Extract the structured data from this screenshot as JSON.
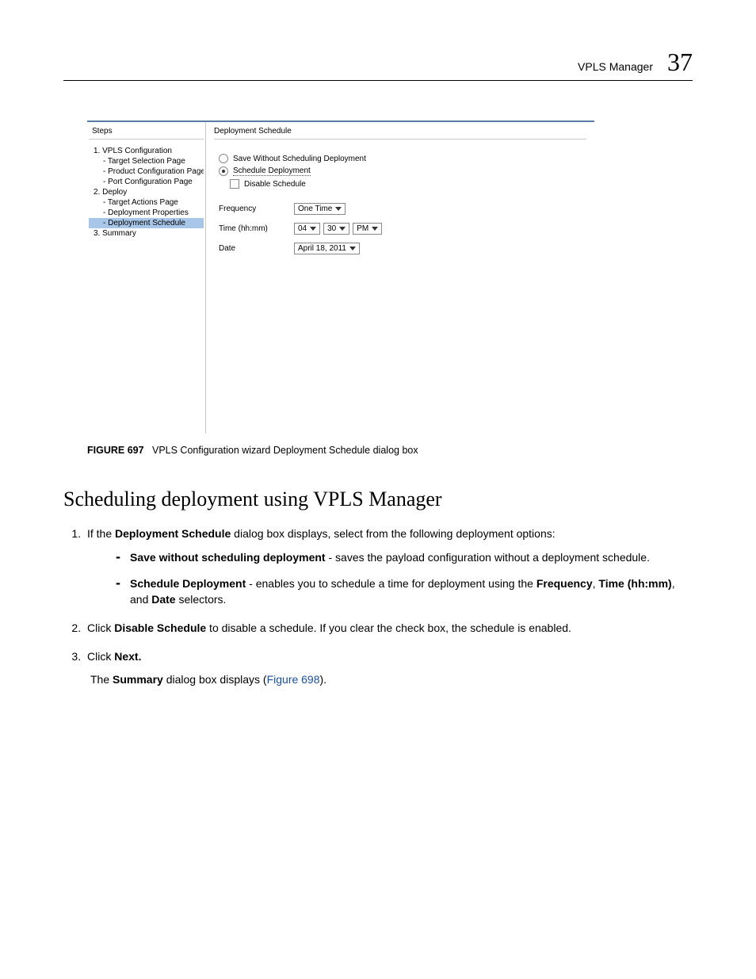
{
  "header": {
    "title": "VPLS Manager",
    "chapter_number": "37"
  },
  "figure": {
    "steps_title": "Steps",
    "steps": [
      {
        "label": "1. VPLS Configuration",
        "sub": false,
        "active": false
      },
      {
        "label": "- Target Selection Page",
        "sub": true,
        "active": false
      },
      {
        "label": "- Product Configuration Page",
        "sub": true,
        "active": false
      },
      {
        "label": "- Port Configuration Page",
        "sub": true,
        "active": false
      },
      {
        "label": "2. Deploy",
        "sub": false,
        "active": false
      },
      {
        "label": "- Target Actions Page",
        "sub": true,
        "active": false
      },
      {
        "label": "- Deployment Properties",
        "sub": true,
        "active": false
      },
      {
        "label": "- Deployment Schedule",
        "sub": true,
        "active": true
      },
      {
        "label": "3. Summary",
        "sub": false,
        "active": false
      }
    ],
    "panel_title": "Deployment Schedule",
    "radio_save": "Save Without Scheduling Deployment",
    "radio_schedule": "Schedule Deployment",
    "check_disable": "Disable Schedule",
    "row_freq_label": "Frequency",
    "row_freq_value": "One Time",
    "row_time_label": "Time (hh:mm)",
    "row_time_hh": "04",
    "row_time_mm": "30",
    "row_time_ampm": "PM",
    "row_date_label": "Date",
    "row_date_value": "April 18, 2011"
  },
  "caption": {
    "label": "FIGURE 697",
    "text": "VPLS Configuration wizard Deployment Schedule dialog box"
  },
  "section_heading": "Scheduling deployment using VPLS Manager",
  "body": {
    "li1_a": "If the ",
    "li1_b": "Deployment Schedule",
    "li1_c": " dialog box displays, select from the following deployment options:",
    "li1_sub1_b": "Save without scheduling deployment",
    "li1_sub1_t": " - saves the payload configuration without a deployment schedule.",
    "li1_sub2_b": "Schedule Deployment",
    "li1_sub2_t1": " - enables you to schedule a time for deployment using the ",
    "li1_sub2_b2": "Frequency",
    "li1_sub2_t2": ", ",
    "li1_sub2_b3": "Time (hh:mm)",
    "li1_sub2_t3": ", and ",
    "li1_sub2_b4": "Date",
    "li1_sub2_t4": " selectors.",
    "li2_a": "Click ",
    "li2_b": "Disable Schedule",
    "li2_c": " to disable a schedule. If you clear the check box, the schedule is enabled.",
    "li3_a": "Click ",
    "li3_b": "Next.",
    "li3_p_a": "The ",
    "li3_p_b": "Summary",
    "li3_p_c": " dialog box displays (",
    "li3_p_link": "Figure 698",
    "li3_p_d": ")."
  }
}
